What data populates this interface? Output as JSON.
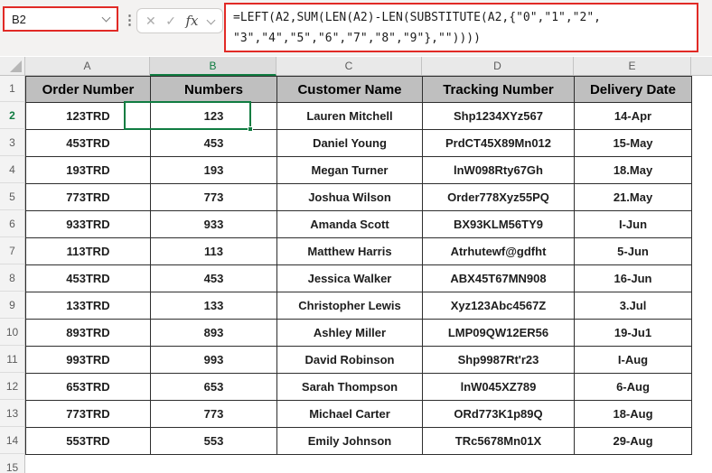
{
  "name_box": {
    "value": "B2"
  },
  "formula_bar": {
    "formula_line1": "=LEFT(A2,SUM(LEN(A2)-LEN(SUBSTITUTE(A2,{\"0\",\"1\",\"2\",",
    "formula_line2": "\"3\",\"4\",\"5\",\"6\",\"7\",\"8\",\"9\"},\"\"))))",
    "icons": {
      "cancel": "✕",
      "confirm": "✓",
      "fx": "fx",
      "separator_dots": "⋮"
    }
  },
  "grid": {
    "column_letters": [
      "A",
      "B",
      "C",
      "D",
      "E"
    ],
    "selected_column": "B",
    "selected_cell": "B2",
    "row_numbers": [
      1,
      2,
      3,
      4,
      5,
      6,
      7,
      8,
      9,
      10,
      11,
      12,
      13,
      14,
      15
    ],
    "headers": [
      "Order Number",
      "Numbers",
      "Customer Name",
      "Tracking Number",
      "Delivery Date"
    ],
    "rows": [
      {
        "n": 2,
        "a": "123TRD",
        "b": "123",
        "c": "Lauren Mitchell",
        "d": "Shp1234XYz567",
        "e": "14-Apr"
      },
      {
        "n": 3,
        "a": "453TRD",
        "b": "453",
        "c": "Daniel Young",
        "d": "PrdCT45X89Mn012",
        "e": "15-May"
      },
      {
        "n": 4,
        "a": "193TRD",
        "b": "193",
        "c": "Megan Turner",
        "d": "lnW098Rty67Gh",
        "e": "18.May"
      },
      {
        "n": 5,
        "a": "773TRD",
        "b": "773",
        "c": "Joshua Wilson",
        "d": "Order778Xyz55PQ",
        "e": "21.May"
      },
      {
        "n": 6,
        "a": "933TRD",
        "b": "933",
        "c": "Amanda Scott",
        "d": "BX93KLM56TY9",
        "e": "I-Jun"
      },
      {
        "n": 7,
        "a": "113TRD",
        "b": "113",
        "c": "Matthew Harris",
        "d": "Atrhutewf@gdfht",
        "e": "5-Jun"
      },
      {
        "n": 8,
        "a": "453TRD",
        "b": "453",
        "c": "Jessica Walker",
        "d": "ABX45T67MN908",
        "e": "16-Jun"
      },
      {
        "n": 9,
        "a": "133TRD",
        "b": "133",
        "c": "Christopher Lewis",
        "d": "Xyz123Abc4567Z",
        "e": "3.Jul"
      },
      {
        "n": 10,
        "a": "893TRD",
        "b": "893",
        "c": "Ashley Miller",
        "d": "LMP09QW12ER56",
        "e": "19-Ju1"
      },
      {
        "n": 11,
        "a": "993TRD",
        "b": "993",
        "c": "David Robinson",
        "d": "Shp9987Rt'r23",
        "e": "I-Aug"
      },
      {
        "n": 12,
        "a": "653TRD",
        "b": "653",
        "c": "Sarah Thompson",
        "d": "lnW045XZ789",
        "e": "6-Aug"
      },
      {
        "n": 13,
        "a": "773TRD",
        "b": "773",
        "c": "Michael Carter",
        "d": "ORd773K1p89Q",
        "e": "18-Aug"
      },
      {
        "n": 14,
        "a": "553TRD",
        "b": "553",
        "c": "Emily Johnson",
        "d": "TRc5678Mn01X",
        "e": "29-Aug"
      }
    ]
  },
  "colors": {
    "annotation_red": "#e12a26",
    "selection_green": "#107C41",
    "header_fill": "#bfbfbf",
    "band_fill": "#e9e9e9"
  }
}
